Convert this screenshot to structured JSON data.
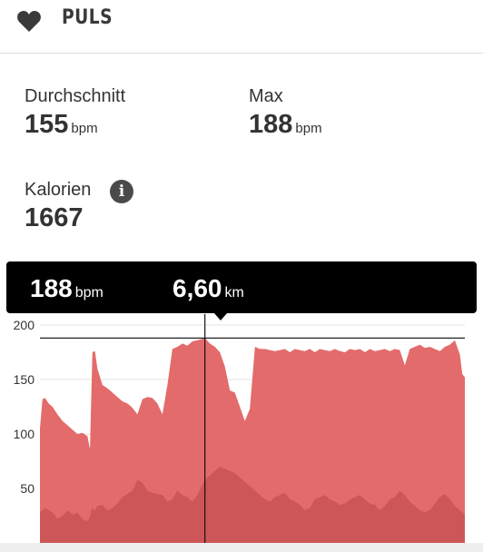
{
  "header": {
    "title": "PULS",
    "icon": "heart-icon"
  },
  "stats": {
    "average": {
      "label": "Durchschnitt",
      "value": "155",
      "unit": "bpm"
    },
    "max": {
      "label": "Max",
      "value": "188",
      "unit": "bpm"
    },
    "calories": {
      "label": "Kalorien",
      "value": "1667",
      "info_icon": "info-icon"
    }
  },
  "tooltip": {
    "bpm_value": "188",
    "bpm_unit": "bpm",
    "distance_value": "6,60",
    "distance_unit": "km"
  },
  "colors": {
    "hr_fill": "#e46b6b",
    "secondary_fill": "#cd5758",
    "tooltip_bg": "#000000"
  },
  "chart_data": {
    "type": "area",
    "ylim": [
      0,
      200
    ],
    "y_ticks": [
      "50",
      "100",
      "150",
      "200"
    ],
    "cursor_x": 6.6,
    "max_line": 188,
    "x": [
      0,
      0.1,
      0.2,
      0.35,
      0.5,
      0.7,
      0.9,
      1.1,
      1.3,
      1.5,
      1.7,
      1.9,
      2.0,
      2.05,
      2.1,
      2.2,
      2.3,
      2.5,
      2.7,
      2.9,
      3.1,
      3.3,
      3.5,
      3.7,
      3.9,
      4.1,
      4.3,
      4.5,
      4.7,
      4.9,
      5.1,
      5.3,
      5.5,
      5.7,
      5.9,
      6.1,
      6.3,
      6.6,
      6.8,
      7.0,
      7.2,
      7.4,
      7.6,
      7.8,
      8.0,
      8.2,
      8.4,
      8.6,
      8.8,
      9.0,
      9.2,
      9.4,
      9.6,
      9.8,
      10.0,
      10.2,
      10.4,
      10.6,
      10.8,
      11.0,
      11.2,
      11.4,
      11.6,
      11.8,
      12.0,
      12.2,
      12.4,
      12.6,
      12.8,
      13.0,
      13.2,
      13.4,
      13.6,
      13.8,
      14.0,
      14.2,
      14.4,
      14.6,
      14.8,
      15.0,
      15.2,
      15.4,
      15.6,
      15.8,
      16.0,
      16.2,
      16.4,
      16.6,
      16.8,
      16.9,
      17.0
    ],
    "series": [
      {
        "values": [
          105,
          132,
          133,
          128,
          125,
          118,
          112,
          108,
          104,
          100,
          101,
          98,
          86,
          130,
          175,
          176,
          160,
          145,
          142,
          138,
          134,
          130,
          128,
          124,
          118,
          132,
          134,
          133,
          128,
          118,
          145,
          178,
          180,
          183,
          181,
          185,
          186,
          188,
          183,
          180,
          175,
          162,
          140,
          138,
          125,
          112,
          123,
          180,
          178,
          178,
          177,
          176,
          177,
          178,
          175,
          178,
          177,
          176,
          178,
          175,
          178,
          177,
          176,
          178,
          176,
          175,
          178,
          177,
          178,
          175,
          178,
          176,
          177,
          178,
          176,
          178,
          177,
          163,
          178,
          180,
          182,
          179,
          180,
          178,
          176,
          180,
          182,
          186,
          173,
          155,
          152
        ]
      },
      {
        "values": [
          28,
          30,
          32,
          30,
          28,
          22,
          25,
          30,
          26,
          28,
          22,
          20,
          24,
          30,
          32,
          30,
          34,
          35,
          30,
          32,
          36,
          42,
          45,
          48,
          58,
          55,
          48,
          46,
          45,
          44,
          38,
          40,
          48,
          44,
          42,
          38,
          44,
          58,
          62,
          66,
          70,
          68,
          66,
          64,
          60,
          56,
          52,
          48,
          44,
          40,
          38,
          42,
          44,
          46,
          40,
          38,
          35,
          30,
          32,
          40,
          42,
          44,
          40,
          38,
          35,
          36,
          40,
          42,
          44,
          40,
          36,
          35,
          30,
          34,
          40,
          42,
          48,
          44,
          38,
          34,
          30,
          28,
          30,
          36,
          42,
          45,
          40,
          34,
          30,
          28,
          26
        ]
      }
    ]
  }
}
